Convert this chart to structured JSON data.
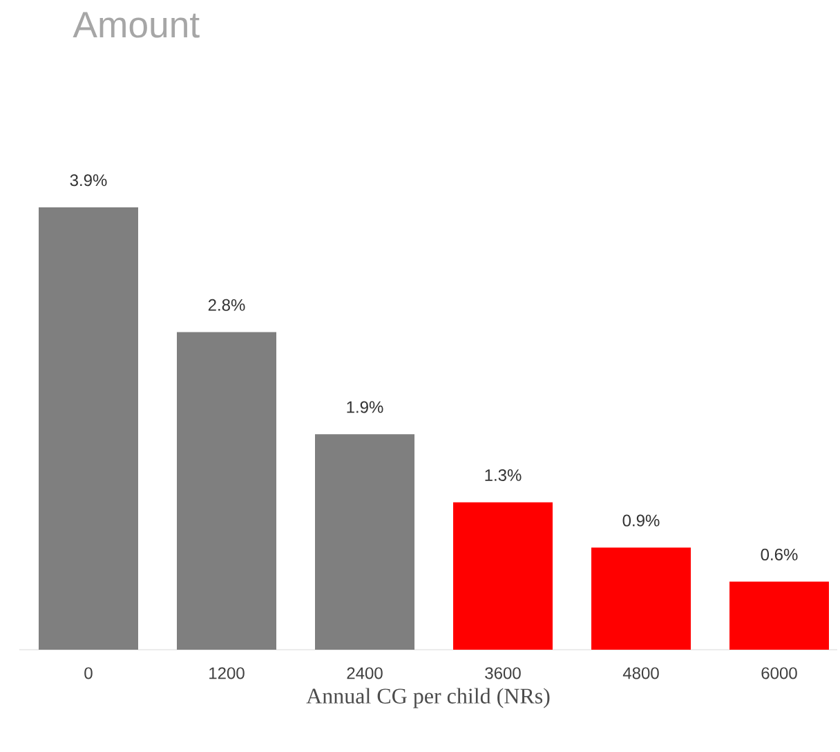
{
  "chart_data": {
    "type": "bar",
    "title": "Amount",
    "xlabel": "Annual CG per child (NRs)",
    "categories": [
      "0",
      "1200",
      "2400",
      "3600",
      "4800",
      "6000"
    ],
    "values": [
      3.9,
      2.8,
      1.9,
      1.3,
      0.9,
      0.6
    ],
    "colors": [
      "#7f7f7f",
      "#7f7f7f",
      "#7f7f7f",
      "#ff0000",
      "#ff0000",
      "#ff0000"
    ],
    "value_labels": [
      "3.9%",
      "2.8%",
      "1.9%",
      "1.3%",
      "0.9%",
      "0.6%"
    ]
  }
}
